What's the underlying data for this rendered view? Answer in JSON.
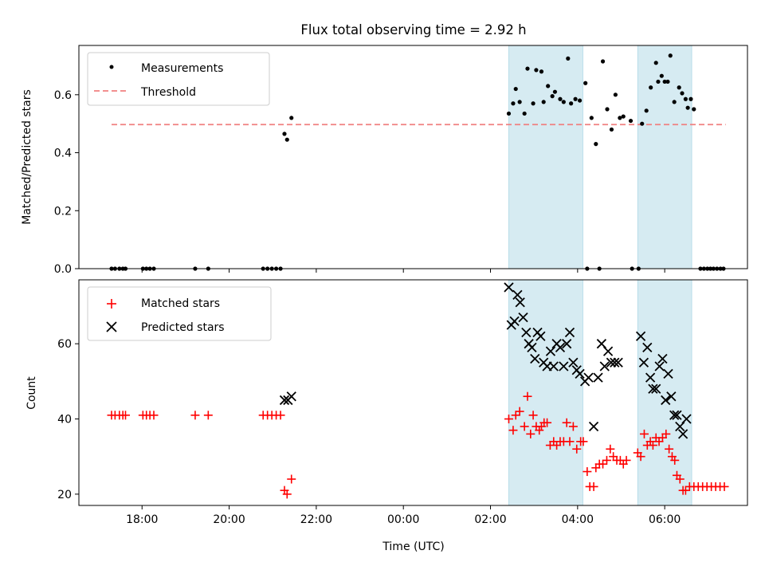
{
  "figure": {
    "title": "Flux total observing time = 2.92 h",
    "xlabel": "Time (UTC)"
  },
  "chart_data": [
    {
      "type": "scatter",
      "panel": "top",
      "ylabel": "Matched/Predicted stars",
      "xlim_hours": [
        16.55,
        31.9
      ],
      "ylim": [
        0,
        0.77
      ],
      "yticks": [
        0.0,
        0.2,
        0.4,
        0.6
      ],
      "ytick_labels": [
        "0.0",
        "0.2",
        "0.4",
        "0.6"
      ],
      "grid": false,
      "legend": "top-left",
      "legend_entries": [
        "Measurements",
        "Threshold"
      ],
      "highlight_spans_hours": [
        [
          26.42,
          28.12
        ],
        [
          29.38,
          30.62
        ]
      ],
      "threshold": {
        "name": "Threshold",
        "value": 0.497,
        "x_range_hours": [
          17.3,
          31.4
        ],
        "color": "#f08080"
      },
      "series": [
        {
          "name": "Measurements",
          "color": "#000000",
          "marker": "dot",
          "points": [
            [
              17.3,
              0
            ],
            [
              17.38,
              0
            ],
            [
              17.48,
              0
            ],
            [
              17.56,
              0
            ],
            [
              17.62,
              0
            ],
            [
              18.02,
              0
            ],
            [
              18.1,
              0
            ],
            [
              18.18,
              0
            ],
            [
              18.27,
              0
            ],
            [
              19.22,
              0
            ],
            [
              19.52,
              0
            ],
            [
              20.78,
              0
            ],
            [
              20.88,
              0
            ],
            [
              20.98,
              0
            ],
            [
              21.08,
              0
            ],
            [
              21.18,
              0
            ],
            [
              21.27,
              0.465
            ],
            [
              21.33,
              0.445
            ],
            [
              21.43,
              0.52
            ],
            [
              26.42,
              0.535
            ],
            [
              26.52,
              0.57
            ],
            [
              26.58,
              0.62
            ],
            [
              26.67,
              0.575
            ],
            [
              26.78,
              0.535
            ],
            [
              26.85,
              0.69
            ],
            [
              26.98,
              0.57
            ],
            [
              27.05,
              0.685
            ],
            [
              27.17,
              0.68
            ],
            [
              27.22,
              0.575
            ],
            [
              27.32,
              0.63
            ],
            [
              27.42,
              0.595
            ],
            [
              27.48,
              0.61
            ],
            [
              27.6,
              0.585
            ],
            [
              27.68,
              0.575
            ],
            [
              27.78,
              0.725
            ],
            [
              27.85,
              0.57
            ],
            [
              27.95,
              0.585
            ],
            [
              28.05,
              0.58
            ],
            [
              28.18,
              0.64
            ],
            [
              28.22,
              0
            ],
            [
              28.32,
              0.52
            ],
            [
              28.42,
              0.43
            ],
            [
              28.5,
              0
            ],
            [
              28.58,
              0.715
            ],
            [
              28.68,
              0.55
            ],
            [
              28.78,
              0.48
            ],
            [
              28.87,
              0.6
            ],
            [
              28.97,
              0.52
            ],
            [
              29.05,
              0.525
            ],
            [
              29.22,
              0.51
            ],
            [
              29.25,
              0
            ],
            [
              29.4,
              0
            ],
            [
              29.48,
              0.5
            ],
            [
              29.58,
              0.545
            ],
            [
              29.68,
              0.625
            ],
            [
              29.8,
              0.71
            ],
            [
              29.85,
              0.645
            ],
            [
              29.93,
              0.665
            ],
            [
              30.0,
              0.645
            ],
            [
              30.07,
              0.645
            ],
            [
              30.13,
              0.735
            ],
            [
              30.22,
              0.575
            ],
            [
              30.33,
              0.625
            ],
            [
              30.4,
              0.605
            ],
            [
              30.48,
              0.585
            ],
            [
              30.53,
              0.555
            ],
            [
              30.6,
              0.585
            ],
            [
              30.67,
              0.55
            ],
            [
              30.82,
              0
            ],
            [
              30.9,
              0
            ],
            [
              30.98,
              0
            ],
            [
              31.05,
              0
            ],
            [
              31.12,
              0
            ],
            [
              31.2,
              0
            ],
            [
              31.28,
              0
            ],
            [
              31.35,
              0
            ]
          ]
        }
      ]
    },
    {
      "type": "scatter",
      "panel": "bottom",
      "ylabel": "Count",
      "xlim_hours": [
        16.55,
        31.9
      ],
      "ylim": [
        17,
        77
      ],
      "yticks": [
        20,
        40,
        60
      ],
      "ytick_labels": [
        "20",
        "40",
        "60"
      ],
      "xticks_hours": [
        18,
        20,
        22,
        24,
        26,
        28,
        30
      ],
      "xtick_labels": [
        "18:00",
        "20:00",
        "22:00",
        "00:00",
        "02:00",
        "04:00",
        "06:00"
      ],
      "grid": false,
      "legend": "top-left",
      "legend_entries": [
        "Matched stars",
        "Predicted stars"
      ],
      "highlight_spans_hours": [
        [
          26.42,
          28.12
        ],
        [
          29.38,
          30.62
        ]
      ],
      "series": [
        {
          "name": "Matched stars",
          "color": "#ff0000",
          "marker": "plus",
          "points": [
            [
              17.3,
              41
            ],
            [
              17.38,
              41
            ],
            [
              17.48,
              41
            ],
            [
              17.56,
              41
            ],
            [
              17.62,
              41
            ],
            [
              18.02,
              41
            ],
            [
              18.1,
              41
            ],
            [
              18.18,
              41
            ],
            [
              18.27,
              41
            ],
            [
              19.22,
              41
            ],
            [
              19.52,
              41
            ],
            [
              20.78,
              41
            ],
            [
              20.88,
              41
            ],
            [
              20.98,
              41
            ],
            [
              21.08,
              41
            ],
            [
              21.18,
              41
            ],
            [
              21.27,
              21
            ],
            [
              21.33,
              20
            ],
            [
              21.43,
              24
            ],
            [
              26.42,
              40
            ],
            [
              26.52,
              37
            ],
            [
              26.58,
              41
            ],
            [
              26.67,
              42
            ],
            [
              26.78,
              38
            ],
            [
              26.85,
              46
            ],
            [
              26.92,
              36
            ],
            [
              26.98,
              41
            ],
            [
              27.05,
              38
            ],
            [
              27.12,
              37
            ],
            [
              27.17,
              38
            ],
            [
              27.23,
              39
            ],
            [
              27.3,
              39
            ],
            [
              27.37,
              33
            ],
            [
              27.45,
              34
            ],
            [
              27.52,
              33
            ],
            [
              27.6,
              34
            ],
            [
              27.68,
              34
            ],
            [
              27.75,
              39
            ],
            [
              27.82,
              34
            ],
            [
              27.9,
              38
            ],
            [
              27.98,
              32
            ],
            [
              28.07,
              34
            ],
            [
              28.13,
              34
            ],
            [
              28.22,
              26
            ],
            [
              28.28,
              22
            ],
            [
              28.37,
              22
            ],
            [
              28.42,
              27
            ],
            [
              28.5,
              28
            ],
            [
              28.58,
              28
            ],
            [
              28.67,
              29
            ],
            [
              28.75,
              32
            ],
            [
              28.82,
              30
            ],
            [
              28.9,
              29
            ],
            [
              28.98,
              29
            ],
            [
              29.05,
              28
            ],
            [
              29.12,
              29
            ],
            [
              29.38,
              31
            ],
            [
              29.45,
              30
            ],
            [
              29.53,
              36
            ],
            [
              29.6,
              33
            ],
            [
              29.67,
              34
            ],
            [
              29.73,
              33
            ],
            [
              29.8,
              35
            ],
            [
              29.87,
              34
            ],
            [
              29.95,
              35
            ],
            [
              30.03,
              36
            ],
            [
              30.1,
              32
            ],
            [
              30.17,
              30
            ],
            [
              30.23,
              29
            ],
            [
              30.28,
              25
            ],
            [
              30.35,
              24
            ],
            [
              30.42,
              21
            ],
            [
              30.48,
              21
            ],
            [
              30.57,
              22
            ],
            [
              30.67,
              22
            ],
            [
              30.77,
              22
            ],
            [
              30.87,
              22
            ],
            [
              30.97,
              22
            ],
            [
              31.07,
              22
            ],
            [
              31.17,
              22
            ],
            [
              31.27,
              22
            ],
            [
              31.37,
              22
            ]
          ]
        },
        {
          "name": "Predicted stars",
          "color": "#000000",
          "marker": "x",
          "points": [
            [
              21.27,
              45
            ],
            [
              21.35,
              45
            ],
            [
              21.43,
              46
            ],
            [
              26.42,
              75
            ],
            [
              26.48,
              65
            ],
            [
              26.55,
              66
            ],
            [
              26.62,
              73
            ],
            [
              26.68,
              71
            ],
            [
              26.75,
              67
            ],
            [
              26.82,
              63
            ],
            [
              26.88,
              60
            ],
            [
              26.95,
              59
            ],
            [
              27.02,
              56
            ],
            [
              27.08,
              63
            ],
            [
              27.15,
              62
            ],
            [
              27.22,
              55
            ],
            [
              27.3,
              54
            ],
            [
              27.38,
              58
            ],
            [
              27.45,
              54
            ],
            [
              27.52,
              60
            ],
            [
              27.6,
              59
            ],
            [
              27.68,
              54
            ],
            [
              27.75,
              60
            ],
            [
              27.82,
              63
            ],
            [
              27.9,
              55
            ],
            [
              27.98,
              53
            ],
            [
              28.05,
              52
            ],
            [
              28.17,
              50
            ],
            [
              28.25,
              51
            ],
            [
              28.37,
              38
            ],
            [
              28.47,
              51
            ],
            [
              28.55,
              60
            ],
            [
              28.62,
              54
            ],
            [
              28.7,
              58
            ],
            [
              28.77,
              55
            ],
            [
              28.85,
              55
            ],
            [
              28.93,
              55
            ],
            [
              29.45,
              62
            ],
            [
              29.52,
              55
            ],
            [
              29.6,
              59
            ],
            [
              29.67,
              51
            ],
            [
              29.73,
              48
            ],
            [
              29.8,
              48
            ],
            [
              29.88,
              54
            ],
            [
              29.95,
              56
            ],
            [
              30.02,
              45
            ],
            [
              30.08,
              52
            ],
            [
              30.15,
              46
            ],
            [
              30.22,
              41
            ],
            [
              30.28,
              41
            ],
            [
              30.35,
              38
            ],
            [
              30.42,
              36
            ],
            [
              30.5,
              40
            ]
          ]
        }
      ]
    }
  ]
}
